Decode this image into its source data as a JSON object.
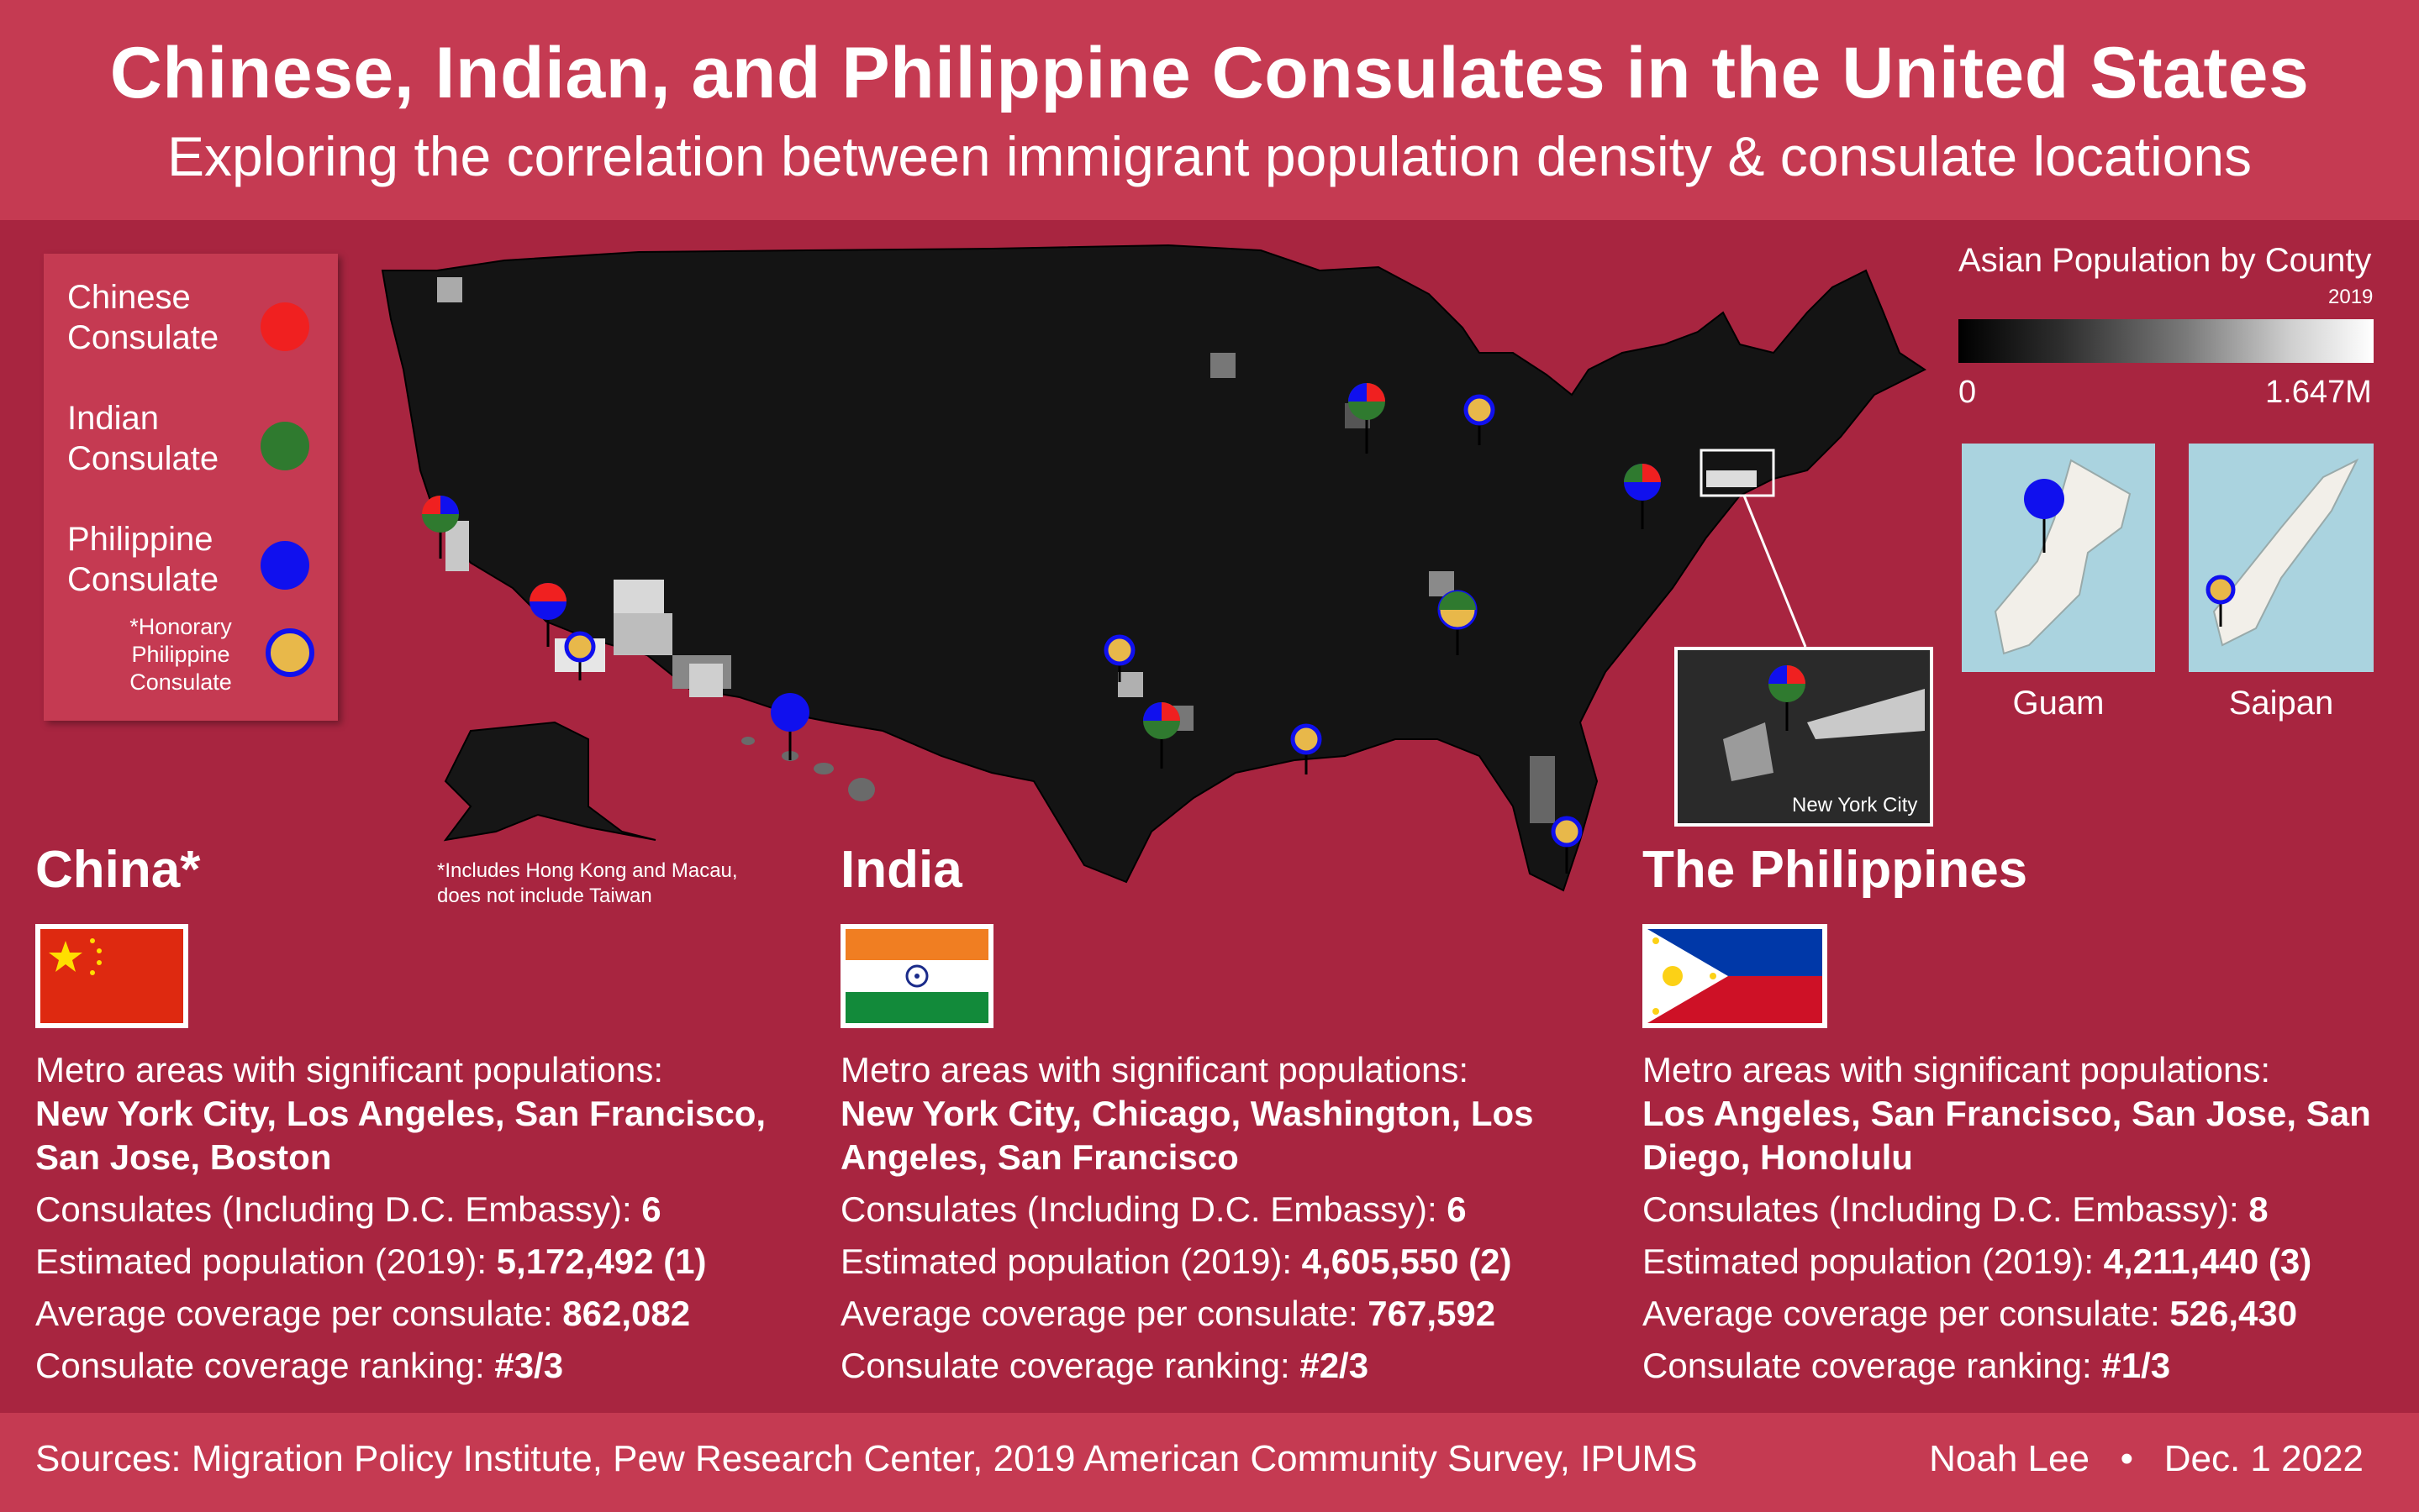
{
  "header": {
    "title": "Chinese, Indian, and Philippine Consulates in the United States",
    "subtitle": "Exploring the correlation between immigrant population density & consulate locations"
  },
  "legend": {
    "chinese": "Chinese Consulate",
    "indian": "Indian Consulate",
    "philippine": "Philippine Consulate",
    "honorary": "*Honorary Philippine Consulate",
    "colors": {
      "chinese": "#f02020",
      "indian": "#2f7a2f",
      "philippine": "#1010ee",
      "honorary": "#e8b84a"
    }
  },
  "map": {
    "note": "*Includes Hong Kong and Macau, does not include Taiwan",
    "inset_label": "New York City",
    "scale_title": "Asian Population by County",
    "scale_year": "2019",
    "scale_min": "0",
    "scale_max": "1.647M",
    "islands": [
      "Guam",
      "Saipan"
    ]
  },
  "countries": [
    {
      "name": "China*",
      "metro_label": "Metro areas with significant populations:",
      "metros": "New York City, Los Angeles, San Francisco, San Jose, Boston",
      "consulates_label": "Consulates (Including D.C. Embassy):",
      "consulates": "6",
      "population_label": "Estimated population (2019):",
      "population": "5,172,492 (1)",
      "coverage_label": "Average coverage per consulate:",
      "coverage": "862,082",
      "ranking_label": "Consulate coverage ranking:",
      "ranking": "#3/3"
    },
    {
      "name": "India",
      "metro_label": "Metro areas with significant populations:",
      "metros": "New York City, Chicago, Washington, Los Angeles, San Francisco",
      "consulates_label": "Consulates (Including D.C. Embassy):",
      "consulates": "6",
      "population_label": "Estimated population (2019):",
      "population": "4,605,550 (2)",
      "coverage_label": "Average coverage per consulate:",
      "coverage": "767,592",
      "ranking_label": "Consulate coverage ranking:",
      "ranking": "#2/3"
    },
    {
      "name": "The Philippines",
      "metro_label": "Metro areas with significant populations:",
      "metros": "Los Angeles, San Francisco, San Jose, San Diego, Honolulu",
      "consulates_label": "Consulates (Including D.C. Embassy):",
      "consulates": "8",
      "population_label": "Estimated population (2019):",
      "population": "4,211,440 (3)",
      "coverage_label": "Average coverage per consulate:",
      "coverage": "526,430",
      "ranking_label": "Consulate coverage ranking:",
      "ranking": "#1/3"
    }
  ],
  "footer": {
    "sources": "Sources: Migration Policy Institute, Pew Research Center, 2019 American Community Survey, IPUMS",
    "author": "Noah Lee",
    "date": "Dec. 1 2022"
  }
}
